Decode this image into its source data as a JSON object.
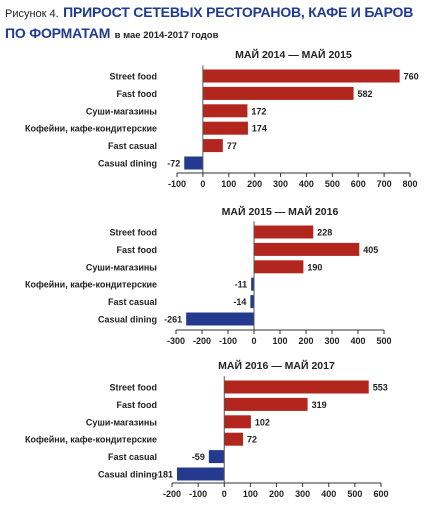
{
  "figure": {
    "prefix": "Рисунок 4.",
    "title_line1": "ПРИРОСТ СЕТЕВЫХ РЕСТОРАНОВ, КАФЕ И БАРОВ",
    "title_line2": "ПО ФОРМАТАМ",
    "subtitle": "в мае 2014-2017 годов",
    "colors": {
      "positive": "#b3261e",
      "negative": "#243a8e",
      "title": "#1f3a93"
    }
  },
  "chart_data": [
    {
      "type": "bar",
      "orientation": "horizontal",
      "title": "МАЙ 2014 — МАЙ 2015",
      "categories": [
        "Street food",
        "Fast food",
        "Суши-магазины",
        "Кофейни, кафе-кондитерские",
        "Fast casual",
        "Casual dining"
      ],
      "values": [
        760,
        582,
        172,
        174,
        77,
        -72
      ],
      "xlim": [
        -100,
        800
      ],
      "ticks": [
        -100,
        0,
        100,
        200,
        300,
        400,
        500,
        600,
        700,
        800
      ]
    },
    {
      "type": "bar",
      "orientation": "horizontal",
      "title": "МАЙ 2015 — МАЙ 2016",
      "categories": [
        "Street food",
        "Fast food",
        "Суши-магазины",
        "Кофейни, кафе-кондитерские",
        "Fast casual",
        "Casual dining"
      ],
      "values": [
        228,
        405,
        190,
        -11,
        -14,
        -261
      ],
      "xlim": [
        -300,
        500
      ],
      "ticks": [
        -300,
        -200,
        -100,
        0,
        100,
        200,
        300,
        400,
        500
      ]
    },
    {
      "type": "bar",
      "orientation": "horizontal",
      "title": "МАЙ 2016 — МАЙ 2017",
      "categories": [
        "Street food",
        "Fast food",
        "Суши-магазины",
        "Кофейни, кафе-кондитерские",
        "Fast casual",
        "Casual dining"
      ],
      "values": [
        553,
        319,
        102,
        72,
        -59,
        -181
      ],
      "xlim": [
        -200,
        600
      ],
      "ticks": [
        -200,
        -100,
        0,
        100,
        200,
        300,
        400,
        500,
        600
      ]
    }
  ]
}
